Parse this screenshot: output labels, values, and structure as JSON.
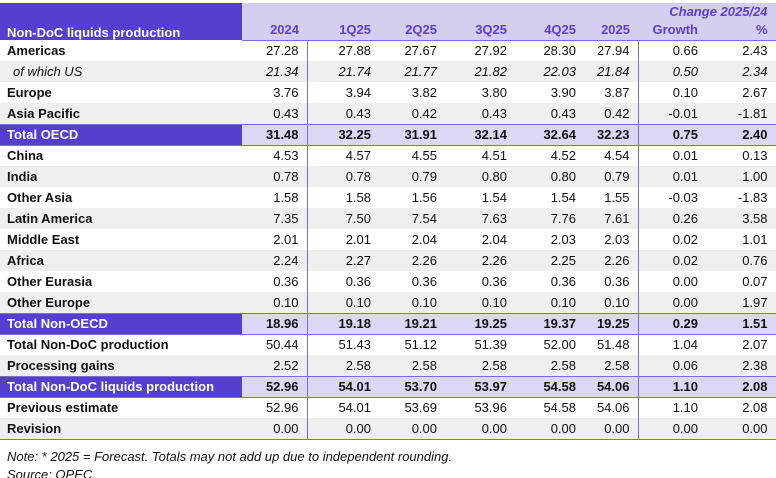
{
  "colors": {
    "dark_purple": "#5340ce",
    "lavender_header": "#d4cfee",
    "lavender_total": "#dcd7f4",
    "header_text": "#5c3fca",
    "stripe_gray": "#efefef",
    "border_purple": "#7b6ed2",
    "text_color": "#111111"
  },
  "table": {
    "title": "Non-DoC liquids production",
    "change_header": "Change 2025/24",
    "columns": [
      "2024",
      "1Q25",
      "2Q25",
      "3Q25",
      "4Q25",
      "2025",
      "Growth",
      "%"
    ],
    "rows": [
      {
        "label": "Americas",
        "shade": "white",
        "italic": false,
        "values": [
          "27.28",
          "27.88",
          "27.67",
          "27.92",
          "28.30",
          "27.94",
          "0.66",
          "2.43"
        ]
      },
      {
        "label": "of which US",
        "shade": "gray",
        "italic": true,
        "values": [
          "21.34",
          "21.74",
          "21.77",
          "21.82",
          "22.03",
          "21.84",
          "0.50",
          "2.34"
        ]
      },
      {
        "label": "Europe",
        "shade": "white",
        "italic": false,
        "values": [
          "3.76",
          "3.94",
          "3.82",
          "3.80",
          "3.90",
          "3.87",
          "0.10",
          "2.67"
        ]
      },
      {
        "label": "Asia Pacific",
        "shade": "gray",
        "italic": false,
        "values": [
          "0.43",
          "0.43",
          "0.42",
          "0.43",
          "0.43",
          "0.42",
          "-0.01",
          "-1.81"
        ]
      },
      {
        "label": "Total OECD",
        "shade": "total",
        "italic": false,
        "values": [
          "31.48",
          "32.25",
          "31.91",
          "32.14",
          "32.64",
          "32.23",
          "0.75",
          "2.40"
        ]
      },
      {
        "label": "China",
        "shade": "white",
        "italic": false,
        "values": [
          "4.53",
          "4.57",
          "4.55",
          "4.51",
          "4.52",
          "4.54",
          "0.01",
          "0.13"
        ]
      },
      {
        "label": "India",
        "shade": "gray",
        "italic": false,
        "values": [
          "0.78",
          "0.78",
          "0.79",
          "0.80",
          "0.80",
          "0.79",
          "0.01",
          "1.00"
        ]
      },
      {
        "label": "Other Asia",
        "shade": "white",
        "italic": false,
        "values": [
          "1.58",
          "1.58",
          "1.56",
          "1.54",
          "1.54",
          "1.55",
          "-0.03",
          "-1.83"
        ]
      },
      {
        "label": "Latin America",
        "shade": "gray",
        "italic": false,
        "values": [
          "7.35",
          "7.50",
          "7.54",
          "7.63",
          "7.76",
          "7.61",
          "0.26",
          "3.58"
        ]
      },
      {
        "label": "Middle East",
        "shade": "white",
        "italic": false,
        "values": [
          "2.01",
          "2.01",
          "2.04",
          "2.04",
          "2.03",
          "2.03",
          "0.02",
          "1.01"
        ]
      },
      {
        "label": "Africa",
        "shade": "gray",
        "italic": false,
        "values": [
          "2.24",
          "2.27",
          "2.26",
          "2.26",
          "2.25",
          "2.26",
          "0.02",
          "0.76"
        ]
      },
      {
        "label": "Other Eurasia",
        "shade": "white",
        "italic": false,
        "values": [
          "0.36",
          "0.36",
          "0.36",
          "0.36",
          "0.36",
          "0.36",
          "0.00",
          "0.07"
        ]
      },
      {
        "label": "Other Europe",
        "shade": "gray",
        "italic": false,
        "values": [
          "0.10",
          "0.10",
          "0.10",
          "0.10",
          "0.10",
          "0.10",
          "0.00",
          "1.97"
        ]
      },
      {
        "label": "Total Non-OECD",
        "shade": "total",
        "italic": false,
        "values": [
          "18.96",
          "19.18",
          "19.21",
          "19.25",
          "19.37",
          "19.25",
          "0.29",
          "1.51"
        ]
      },
      {
        "label": "Total Non-DoC production",
        "shade": "white",
        "italic": false,
        "values": [
          "50.44",
          "51.43",
          "51.12",
          "51.39",
          "52.00",
          "51.48",
          "1.04",
          "2.07"
        ]
      },
      {
        "label": "Processing gains",
        "shade": "gray",
        "italic": false,
        "values": [
          "2.52",
          "2.58",
          "2.58",
          "2.58",
          "2.58",
          "2.58",
          "0.06",
          "2.38"
        ]
      },
      {
        "label": "Total Non-DoC liquids production",
        "shade": "total",
        "italic": false,
        "values": [
          "52.96",
          "54.01",
          "53.70",
          "53.97",
          "54.58",
          "54.06",
          "1.10",
          "2.08"
        ]
      },
      {
        "label": "Previous estimate",
        "shade": "white",
        "italic": false,
        "values": [
          "52.96",
          "54.01",
          "53.69",
          "53.96",
          "54.58",
          "54.06",
          "1.10",
          "2.08"
        ]
      },
      {
        "label": "Revision",
        "shade": "gray",
        "italic": false,
        "values": [
          "0.00",
          "0.00",
          "0.00",
          "0.00",
          "0.00",
          "0.00",
          "0.00",
          "0.00"
        ]
      }
    ]
  },
  "footer": {
    "note": "Note: * 2025 = Forecast. Totals may not add up due to independent rounding.",
    "source": "Source: OPEC."
  }
}
